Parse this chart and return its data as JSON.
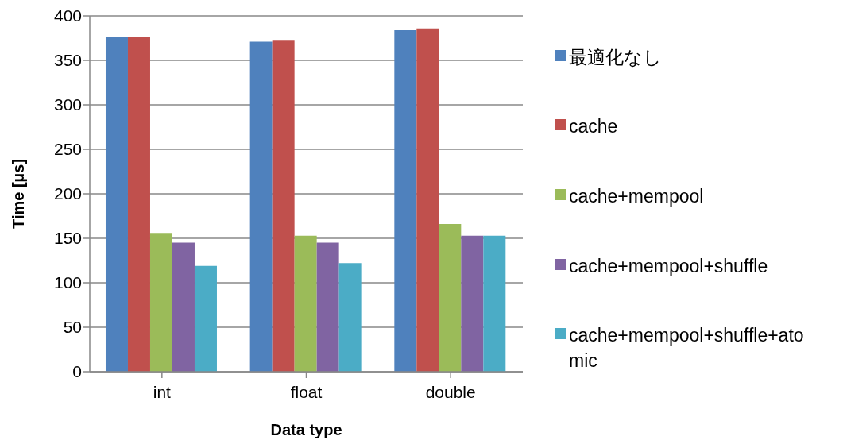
{
  "chart_data": {
    "type": "bar",
    "xlabel": "Data type",
    "ylabel": "Time [µs]",
    "categories": [
      "int",
      "float",
      "double"
    ],
    "series": [
      {
        "name": "最適化なし",
        "color": "#4f81bd",
        "values": [
          376,
          371,
          384
        ]
      },
      {
        "name": "cache",
        "color": "#c0504d",
        "values": [
          376,
          373,
          386
        ]
      },
      {
        "name": "cache+mempool",
        "color": "#9bbb59",
        "values": [
          156,
          153,
          166
        ]
      },
      {
        "name": "cache+mempool+shuffle",
        "color": "#8064a2",
        "values": [
          145,
          145,
          153
        ]
      },
      {
        "name": "cache+mempool+shuffle+atomic",
        "color": "#4bacc6",
        "values": [
          119,
          122,
          153
        ]
      }
    ],
    "ylim": [
      0,
      400
    ],
    "yticks": [
      0,
      50,
      100,
      150,
      200,
      250,
      300,
      350,
      400
    ],
    "grid": "y",
    "legend": "right"
  }
}
